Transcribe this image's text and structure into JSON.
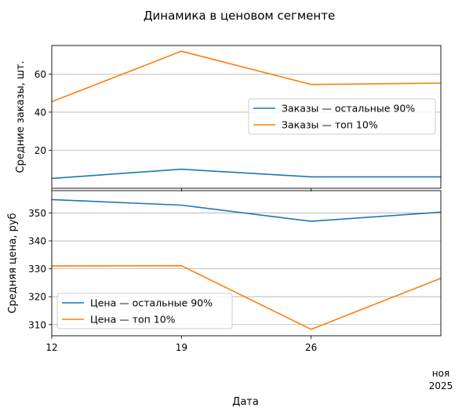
{
  "chart_data": {
    "type": "line",
    "title": "Динамика в ценовом сегменте",
    "xlabel": "Дата",
    "x": [
      "2025-11-12",
      "2025-11-19",
      "2025-11-26",
      "2025-12-03"
    ],
    "x_ticks": [
      {
        "date": "2025-11-12",
        "label": "12"
      },
      {
        "date": "2025-11-19",
        "label": "19"
      },
      {
        "date": "2025-11-26",
        "label": "26"
      }
    ],
    "x_month_label": "ноя",
    "x_year_label": "2025",
    "panels": [
      {
        "ylabel": "Средние заказы, шт.",
        "ylim": [
          0,
          75
        ],
        "yticks": [
          20,
          40,
          60
        ],
        "grid": "y",
        "legend_position": "center-right",
        "series": [
          {
            "name": "Заказы — остальные 90%",
            "color": "#1f77b4",
            "values": [
              5.2,
              10.0,
              6.0,
              6.0
            ]
          },
          {
            "name": "Заказы — топ 10%",
            "color": "#ff7f0e",
            "values": [
              45.5,
              72.0,
              54.5,
              55.2
            ]
          }
        ]
      },
      {
        "ylabel": "Средняя цена, руб",
        "ylim": [
          306,
          358
        ],
        "yticks": [
          310,
          320,
          330,
          340,
          350
        ],
        "grid": "y",
        "legend_position": "lower-left",
        "series": [
          {
            "name": "Цена — остальные 90%",
            "color": "#1f77b4",
            "values": [
              354.8,
              352.8,
              347.0,
              350.3
            ]
          },
          {
            "name": "Цена — топ 10%",
            "color": "#ff7f0e",
            "values": [
              331.0,
              331.1,
              308.3,
              326.6
            ]
          }
        ]
      }
    ]
  }
}
